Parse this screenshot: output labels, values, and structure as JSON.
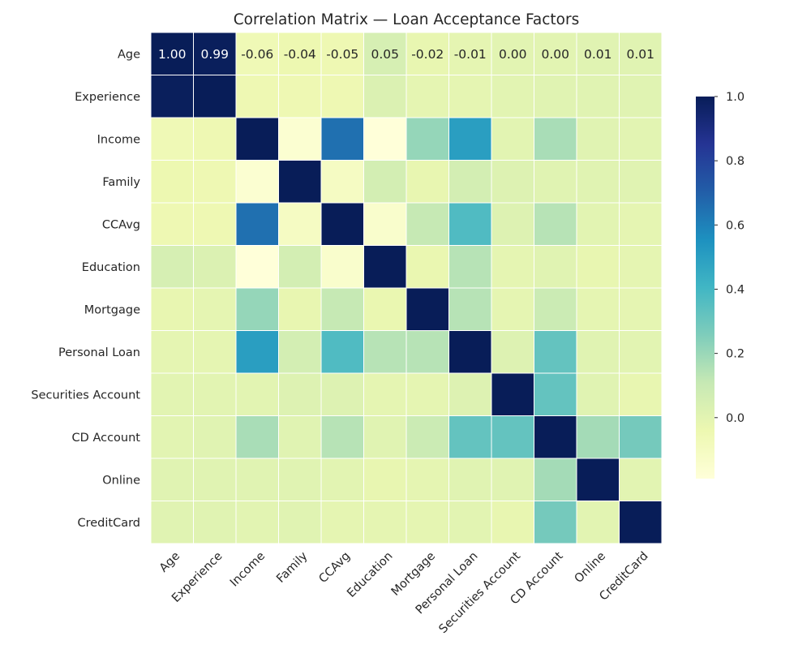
{
  "chart_data": {
    "type": "heatmap",
    "title": "Correlation Matrix — Loan Acceptance Factors",
    "rows": [
      "Age",
      "Experience",
      "Income",
      "Family",
      "CCAvg",
      "Education",
      "Mortgage",
      "Personal Loan",
      "Securities Account",
      "CD Account",
      "Online",
      "CreditCard"
    ],
    "columns": [
      "Age",
      "Experience",
      "Income",
      "Family",
      "CCAvg",
      "Education",
      "Mortgage",
      "Personal Loan",
      "Securities Account",
      "CD Account",
      "Online",
      "CreditCard"
    ],
    "values": [
      [
        1.0,
        0.99,
        -0.06,
        -0.04,
        -0.05,
        0.05,
        -0.02,
        -0.01,
        0.0,
        0.0,
        0.01,
        0.01
      ],
      [
        0.99,
        1.0,
        -0.05,
        -0.05,
        -0.05,
        0.03,
        -0.01,
        -0.01,
        0.0,
        0.01,
        0.01,
        0.01
      ],
      [
        -0.06,
        -0.05,
        1.0,
        -0.16,
        0.65,
        -0.19,
        0.21,
        0.5,
        0.0,
        0.17,
        0.01,
        -0.0
      ],
      [
        -0.04,
        -0.05,
        -0.16,
        1.0,
        -0.11,
        0.06,
        -0.02,
        0.06,
        0.02,
        0.01,
        0.01,
        0.01
      ],
      [
        -0.05,
        -0.05,
        0.65,
        -0.11,
        1.0,
        -0.14,
        0.11,
        0.37,
        0.02,
        0.14,
        -0.0,
        -0.01
      ],
      [
        0.05,
        0.03,
        -0.19,
        0.06,
        -0.14,
        1.0,
        -0.03,
        0.14,
        -0.01,
        0.01,
        -0.02,
        -0.01
      ],
      [
        -0.02,
        -0.01,
        0.21,
        -0.02,
        0.11,
        -0.03,
        1.0,
        0.14,
        -0.01,
        0.09,
        -0.01,
        -0.01
      ],
      [
        -0.01,
        -0.01,
        0.5,
        0.06,
        0.37,
        0.14,
        0.14,
        1.0,
        0.02,
        0.32,
        0.01,
        0.0
      ],
      [
        0.0,
        0.0,
        0.0,
        0.02,
        0.02,
        -0.01,
        -0.01,
        0.02,
        1.0,
        0.32,
        0.01,
        -0.02
      ],
      [
        0.0,
        0.01,
        0.17,
        0.01,
        0.14,
        0.01,
        0.09,
        0.32,
        0.32,
        1.0,
        0.18,
        0.28
      ],
      [
        0.01,
        0.01,
        0.01,
        0.01,
        -0.0,
        -0.02,
        -0.01,
        0.01,
        0.01,
        0.18,
        1.0,
        0.0
      ],
      [
        0.01,
        0.01,
        -0.0,
        0.01,
        -0.01,
        -0.01,
        -0.01,
        0.0,
        -0.02,
        0.28,
        0.0,
        1.0
      ]
    ],
    "annotated_row": 0,
    "annotations": [
      "1.00",
      "0.99",
      "-0.06",
      "-0.04",
      "-0.05",
      "0.05",
      "-0.02",
      "-0.01",
      "0.00",
      "0.00",
      "0.01",
      "0.01"
    ],
    "colorbar": {
      "min": -0.19,
      "max": 1.0,
      "ticks": [
        0.0,
        0.2,
        0.4,
        0.6,
        0.8,
        1.0
      ],
      "tick_labels": [
        "0.0",
        "0.2",
        "0.4",
        "0.6",
        "0.8",
        "1.0"
      ]
    },
    "colormap": "YlGnBu",
    "colormap_stops": [
      "#ffffd9",
      "#edf8b1",
      "#c7e9b4",
      "#7fcdbb",
      "#41b6c4",
      "#1d91c0",
      "#225ea8",
      "#253494",
      "#081d58"
    ],
    "grid": "white cell borders",
    "legend": "right (colorbar)"
  }
}
